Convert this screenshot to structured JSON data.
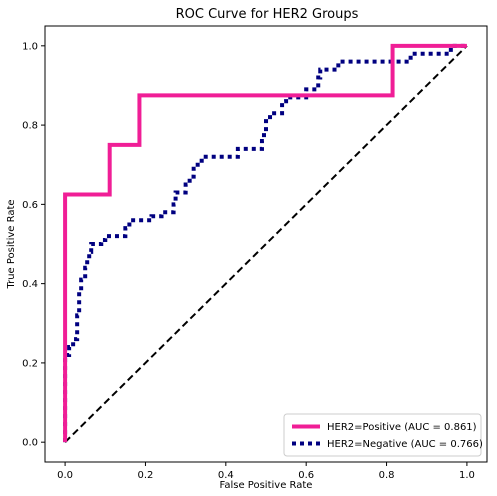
{
  "chart_data": {
    "type": "line",
    "title": "ROC Curve for HER2 Groups",
    "xlabel": "False Positive Rate",
    "ylabel": "True Positive Rate",
    "xlim": [
      -0.05,
      1.05
    ],
    "ylim": [
      -0.05,
      1.05
    ],
    "xticks": [
      0.0,
      0.2,
      0.4,
      0.6,
      0.8,
      1.0
    ],
    "yticks": [
      0.0,
      0.2,
      0.4,
      0.6,
      0.8,
      1.0
    ],
    "xtick_labels": [
      "0.0",
      "0.2",
      "0.4",
      "0.6",
      "0.8",
      "1.0"
    ],
    "ytick_labels": [
      "0.0",
      "0.2",
      "0.4",
      "0.6",
      "0.8",
      "1.0"
    ],
    "grid": false,
    "legend_position": "lower-right",
    "series": [
      {
        "name": "HER2=Positive (AUC = 0.861)",
        "color": "#f01e96",
        "style": "solid",
        "points": [
          [
            0.0,
            0.0
          ],
          [
            0.0,
            0.625
          ],
          [
            0.111,
            0.625
          ],
          [
            0.111,
            0.75
          ],
          [
            0.185,
            0.75
          ],
          [
            0.185,
            0.875
          ],
          [
            0.815,
            0.875
          ],
          [
            0.815,
            1.0
          ],
          [
            1.0,
            1.0
          ]
        ]
      },
      {
        "name": "HER2=Negative (AUC = 0.766)",
        "color": "#000080",
        "style": "dotted",
        "points": [
          [
            0.0,
            0.0
          ],
          [
            0.0,
            0.22
          ],
          [
            0.01,
            0.22
          ],
          [
            0.01,
            0.24
          ],
          [
            0.02,
            0.24
          ],
          [
            0.02,
            0.26
          ],
          [
            0.03,
            0.26
          ],
          [
            0.03,
            0.32
          ],
          [
            0.035,
            0.32
          ],
          [
            0.035,
            0.38
          ],
          [
            0.04,
            0.38
          ],
          [
            0.04,
            0.41
          ],
          [
            0.05,
            0.41
          ],
          [
            0.05,
            0.44
          ],
          [
            0.055,
            0.44
          ],
          [
            0.055,
            0.46
          ],
          [
            0.06,
            0.46
          ],
          [
            0.06,
            0.48
          ],
          [
            0.065,
            0.48
          ],
          [
            0.065,
            0.5
          ],
          [
            0.09,
            0.5
          ],
          [
            0.09,
            0.51
          ],
          [
            0.1,
            0.51
          ],
          [
            0.1,
            0.52
          ],
          [
            0.15,
            0.52
          ],
          [
            0.15,
            0.54
          ],
          [
            0.16,
            0.54
          ],
          [
            0.16,
            0.56
          ],
          [
            0.215,
            0.56
          ],
          [
            0.215,
            0.57
          ],
          [
            0.24,
            0.57
          ],
          [
            0.24,
            0.58
          ],
          [
            0.27,
            0.58
          ],
          [
            0.27,
            0.6
          ],
          [
            0.275,
            0.6
          ],
          [
            0.275,
            0.63
          ],
          [
            0.3,
            0.63
          ],
          [
            0.3,
            0.65
          ],
          [
            0.31,
            0.65
          ],
          [
            0.31,
            0.67
          ],
          [
            0.32,
            0.67
          ],
          [
            0.32,
            0.69
          ],
          [
            0.33,
            0.69
          ],
          [
            0.33,
            0.71
          ],
          [
            0.34,
            0.71
          ],
          [
            0.34,
            0.72
          ],
          [
            0.43,
            0.72
          ],
          [
            0.43,
            0.74
          ],
          [
            0.49,
            0.74
          ],
          [
            0.49,
            0.76
          ],
          [
            0.495,
            0.76
          ],
          [
            0.495,
            0.78
          ],
          [
            0.5,
            0.78
          ],
          [
            0.5,
            0.81
          ],
          [
            0.51,
            0.81
          ],
          [
            0.51,
            0.83
          ],
          [
            0.54,
            0.83
          ],
          [
            0.54,
            0.86
          ],
          [
            0.55,
            0.86
          ],
          [
            0.55,
            0.87
          ],
          [
            0.6,
            0.87
          ],
          [
            0.6,
            0.88
          ],
          [
            0.6,
            0.89
          ],
          [
            0.63,
            0.89
          ],
          [
            0.63,
            0.92
          ],
          [
            0.635,
            0.92
          ],
          [
            0.635,
            0.94
          ],
          [
            0.66,
            0.94
          ],
          [
            0.68,
            0.94
          ],
          [
            0.68,
            0.96
          ],
          [
            0.82,
            0.96
          ],
          [
            0.85,
            0.96
          ],
          [
            0.85,
            0.97
          ],
          [
            0.87,
            0.97
          ],
          [
            0.87,
            0.98
          ],
          [
            0.96,
            0.98
          ],
          [
            0.96,
            1.0
          ],
          [
            1.0,
            1.0
          ]
        ]
      },
      {
        "role": "chance-reference",
        "color": "#000000",
        "style": "dashed",
        "points": [
          [
            0.0,
            0.0
          ],
          [
            1.0,
            1.0
          ]
        ]
      }
    ]
  }
}
